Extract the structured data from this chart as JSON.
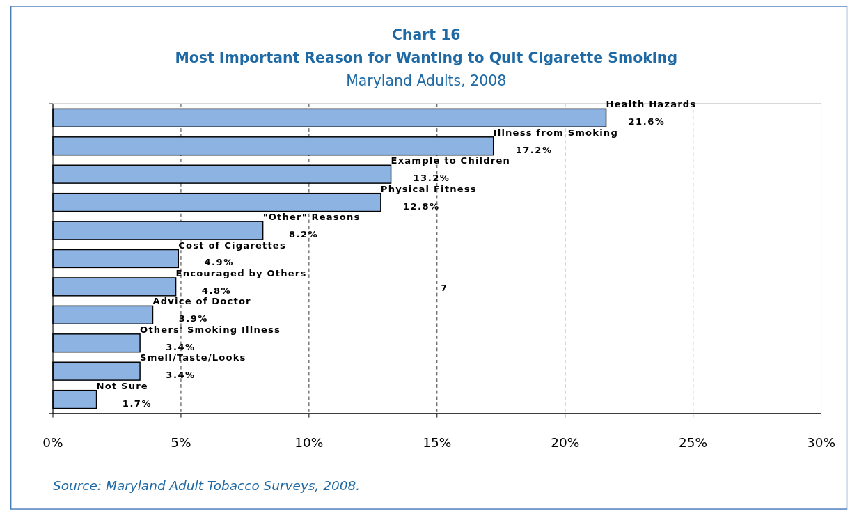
{
  "chart_data": {
    "type": "bar",
    "orientation": "horizontal",
    "title": "Chart 16",
    "subtitle": "Most Important Reason for Wanting to Quit Cigarette Smoking",
    "annotations": [
      "Maryland Adults, 2008",
      "7",
      "Source: Maryland Adult Tobacco Surveys, 2008."
    ],
    "categories": [
      "Health Hazards",
      "Illness from Smoking",
      "Example to Children",
      "Physical Fitness",
      "\"Other\" Reasons",
      "Cost of Cigarettes",
      "Encouraged by Others",
      "Advice of Doctor",
      "Others' Smoking Illness",
      "Smell/Taste/Looks",
      "Not Sure"
    ],
    "values": [
      21.6,
      17.2,
      13.2,
      12.8,
      8.2,
      4.9,
      4.8,
      3.9,
      3.4,
      3.4,
      1.7
    ],
    "value_labels": [
      "21.6%",
      "17.2%",
      "13.2%",
      "12.8%",
      "8.2%",
      "4.9%",
      "4.8%",
      "3.9%",
      "3.4%",
      "3.4%",
      "1.7%"
    ],
    "color": "#8db3e2",
    "xlim": [
      0,
      30
    ],
    "xticks": [
      {
        "value": 0,
        "label": "0%"
      },
      {
        "value": 5,
        "label": "5%"
      },
      {
        "value": 10,
        "label": "10%"
      },
      {
        "value": 15,
        "label": "15%"
      },
      {
        "value": 20,
        "label": "20%"
      },
      {
        "value": 25,
        "label": "25%"
      },
      {
        "value": 30,
        "label": "30%"
      }
    ],
    "grid": "x"
  }
}
